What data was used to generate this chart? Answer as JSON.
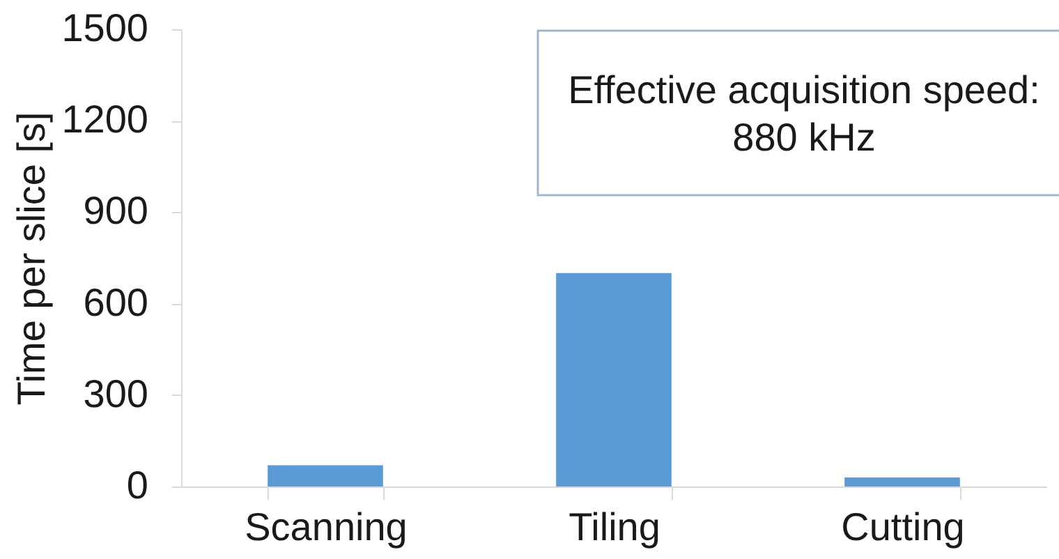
{
  "chart_data": {
    "type": "bar",
    "ylabel": "Time per slice [s]",
    "categories": [
      "Scanning",
      "Tiling",
      "Cutting"
    ],
    "values": [
      70,
      700,
      30
    ],
    "color": "#5b9bd5",
    "ylim": [
      0,
      1500
    ],
    "yticks": [
      0,
      300,
      600,
      900,
      1200,
      1500
    ],
    "grid": false,
    "annotations": [
      "Effective acquisition speed:\n880 kHz"
    ]
  }
}
